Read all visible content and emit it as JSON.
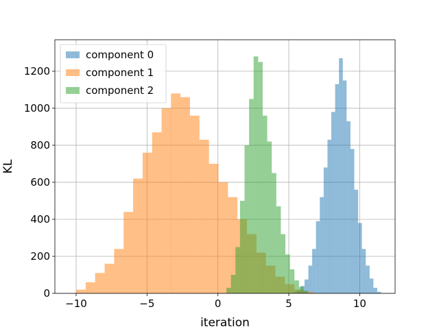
{
  "chart_data": {
    "type": "bar",
    "subtype": "histogram",
    "title": "",
    "xlabel": "iteration",
    "ylabel": "KL",
    "xlim": [
      -11.5,
      12.5
    ],
    "ylim": [
      0,
      1370
    ],
    "xticks": [
      -10,
      -5,
      0,
      5,
      10
    ],
    "xtick_labels": [
      "−10",
      "−5",
      "0",
      "5",
      "10"
    ],
    "yticks": [
      0,
      200,
      400,
      600,
      800,
      1000,
      1200
    ],
    "ytick_labels": [
      "0",
      "200",
      "400",
      "600",
      "800",
      "1000",
      "1200"
    ],
    "grid": true,
    "legend_position": "top-left",
    "series": [
      {
        "name": "component 0",
        "color": "#1f77b4",
        "alpha": 0.5,
        "bin_width": 0.27,
        "bins": [
          [
            5.3,
            5
          ],
          [
            5.57,
            15
          ],
          [
            5.84,
            40
          ],
          [
            6.11,
            75
          ],
          [
            6.38,
            150
          ],
          [
            6.65,
            240
          ],
          [
            6.92,
            390
          ],
          [
            7.19,
            520
          ],
          [
            7.46,
            680
          ],
          [
            7.73,
            830
          ],
          [
            8.0,
            980
          ],
          [
            8.27,
            1130
          ],
          [
            8.54,
            1270
          ],
          [
            8.81,
            1150
          ],
          [
            9.08,
            930
          ],
          [
            9.35,
            780
          ],
          [
            9.62,
            560
          ],
          [
            9.89,
            380
          ],
          [
            10.16,
            240
          ],
          [
            10.43,
            150
          ],
          [
            10.7,
            80
          ],
          [
            10.97,
            30
          ],
          [
            11.24,
            8
          ]
        ]
      },
      {
        "name": "component 1",
        "color": "#ff7f0e",
        "alpha": 0.5,
        "bin_width": 0.67,
        "bins": [
          [
            -10.0,
            20
          ],
          [
            -9.33,
            60
          ],
          [
            -8.66,
            110
          ],
          [
            -7.99,
            160
          ],
          [
            -7.32,
            240
          ],
          [
            -6.65,
            440
          ],
          [
            -5.98,
            620
          ],
          [
            -5.31,
            760
          ],
          [
            -4.64,
            870
          ],
          [
            -3.97,
            1000
          ],
          [
            -3.31,
            1080
          ],
          [
            -2.64,
            1060
          ],
          [
            -1.97,
            960
          ],
          [
            -1.3,
            830
          ],
          [
            -0.63,
            700
          ],
          [
            0.04,
            600
          ],
          [
            0.71,
            520
          ],
          [
            1.38,
            400
          ],
          [
            2.05,
            320
          ],
          [
            2.72,
            220
          ],
          [
            3.39,
            150
          ],
          [
            4.06,
            90
          ],
          [
            4.73,
            50
          ],
          [
            5.4,
            20
          ],
          [
            6.07,
            8
          ]
        ]
      },
      {
        "name": "component 2",
        "color": "#2ca02c",
        "alpha": 0.5,
        "bin_width": 0.32,
        "bins": [
          [
            0.6,
            30
          ],
          [
            0.92,
            100
          ],
          [
            1.24,
            250
          ],
          [
            1.56,
            500
          ],
          [
            1.88,
            800
          ],
          [
            2.2,
            1050
          ],
          [
            2.52,
            1280
          ],
          [
            2.84,
            1250
          ],
          [
            3.16,
            960
          ],
          [
            3.48,
            820
          ],
          [
            3.8,
            650
          ],
          [
            4.12,
            470
          ],
          [
            4.44,
            320
          ],
          [
            4.76,
            210
          ],
          [
            5.08,
            130
          ],
          [
            5.4,
            70
          ],
          [
            5.72,
            35
          ],
          [
            6.04,
            15
          ]
        ]
      }
    ]
  }
}
